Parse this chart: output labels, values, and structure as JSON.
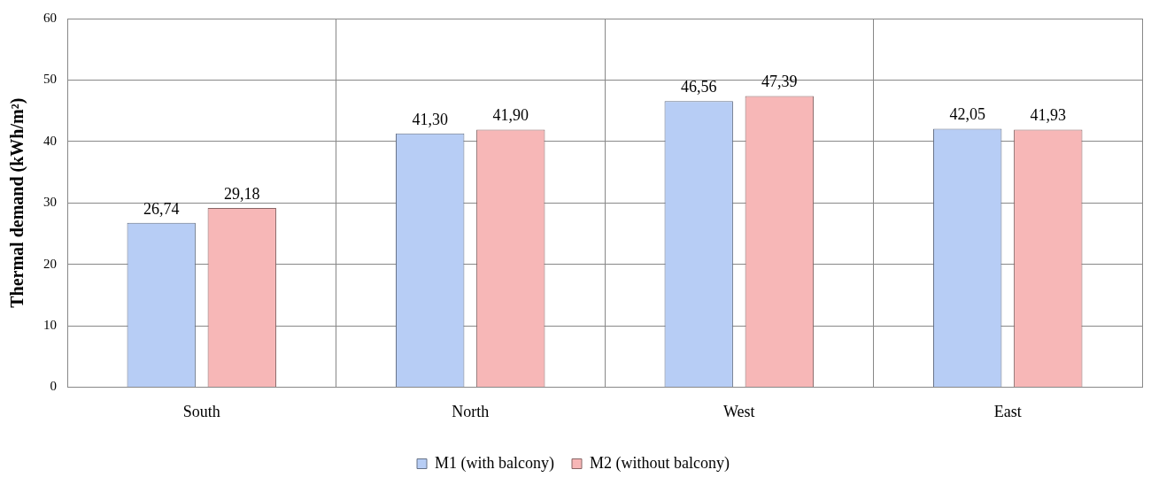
{
  "chart_data": {
    "type": "bar",
    "ylabel": "Thermal demand (kWh/m²)",
    "categories": [
      "South",
      "North",
      "West",
      "East"
    ],
    "series": [
      {
        "name": "M1 (with balcony)",
        "color": "#b7cdf5",
        "values": [
          26.74,
          41.3,
          46.56,
          42.05
        ],
        "value_labels": [
          "26,74",
          "41,30",
          "46,56",
          "42,05"
        ]
      },
      {
        "name": "M2 (without balcony)",
        "color": "#f7b7b7",
        "values": [
          29.18,
          41.9,
          47.39,
          41.93
        ],
        "value_labels": [
          "29,18",
          "41,90",
          "47,39",
          "41,93"
        ]
      }
    ],
    "ylim": [
      0,
      60
    ],
    "yticks": [
      0,
      10,
      20,
      30,
      40,
      50,
      60
    ],
    "grid": true,
    "legend": "bottom"
  }
}
